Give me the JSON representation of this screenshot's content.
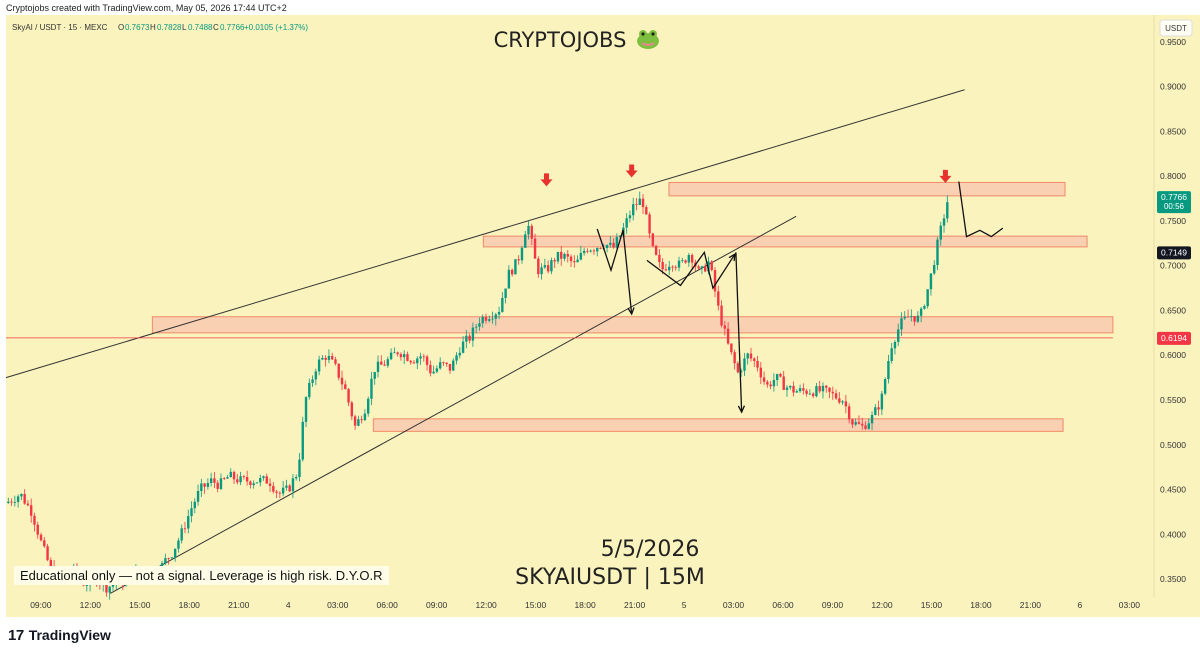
{
  "credit": "Cryptojobs created with TradingView.com, May 05, 2026 17:44 UTC+2",
  "legend": {
    "symbol": "SkyAI / USDT · 15 · MEXC",
    "o_label": "O",
    "o": "0.7673",
    "h_label": "H",
    "h": "0.7828",
    "l_label": "L",
    "l": "0.7488",
    "c_label": "C",
    "c": "0.7766",
    "change": "+0.0105 (+1.37%)"
  },
  "watermark": {
    "text": "CRYPTOJOBS",
    "icon": "frog-icon"
  },
  "annotation": {
    "date": "5/5/2026",
    "pair": "SKYAIUSDT | 15M"
  },
  "disclaimer": "Educational only — not a signal. Leverage is high risk. D.Y.O.R",
  "currency_badge": "USDT",
  "footer": {
    "logo": "17",
    "text": "TradingView"
  },
  "price_tags": {
    "current": {
      "price": "0.7766",
      "countdown": "00:56",
      "color": "#089981"
    },
    "level1": {
      "price": "0.7149",
      "color": "#131722"
    },
    "level2": {
      "price": "0.6194",
      "color": "#f23645"
    }
  },
  "colors": {
    "background": "#fbf3bd",
    "up": "#089981",
    "down": "#f23645",
    "zone_fill": "#f8c9b0",
    "zone_stroke": "#f08a68"
  },
  "chart_data": {
    "type": "candlestick",
    "y_axis": {
      "min": 0.33,
      "max": 0.98,
      "ticks": [
        "0.9500",
        "0.9000",
        "0.8500",
        "0.8000",
        "0.7500",
        "0.7000",
        "0.6500",
        "0.6000",
        "0.5500",
        "0.5000",
        "0.4500",
        "0.4000",
        "0.3500"
      ]
    },
    "x_axis": {
      "ticks": [
        "09:00",
        "12:00",
        "15:00",
        "18:00",
        "21:00",
        "4",
        "03:00",
        "06:00",
        "09:00",
        "12:00",
        "15:00",
        "18:00",
        "21:00",
        "5",
        "03:00",
        "06:00",
        "09:00",
        "12:00",
        "15:00",
        "18:00",
        "21:00",
        "6",
        "03:00"
      ]
    },
    "zones": [
      {
        "x_from": 0.5775,
        "x_to": 0.9225,
        "y_low": 0.778,
        "y_high": 0.793
      },
      {
        "x_from": 0.4158,
        "x_to": 0.9417,
        "y_low": 0.721,
        "y_high": 0.733
      },
      {
        "x_from": 0.1275,
        "x_to": 0.9642,
        "y_low": 0.625,
        "y_high": 0.643
      },
      {
        "x_from": 0.32,
        "x_to": 0.9208,
        "y_low": 0.515,
        "y_high": 0.529
      }
    ],
    "trendlines": [
      {
        "x1": 0.0,
        "y1": 0.575,
        "x2": 0.835,
        "y2": 0.8965
      },
      {
        "x1": 0.0908,
        "y1": 0.334,
        "x2": 0.6883,
        "y2": 0.7552
      },
      {
        "x1": 0.0,
        "y1": 0.6194,
        "x2": 0.9642,
        "y2": 0.6194
      }
    ],
    "projections": [
      [
        [
          0.515,
          0.741
        ],
        [
          0.527,
          0.695
        ],
        [
          0.5375,
          0.74
        ],
        [
          0.545,
          0.646
        ]
      ],
      [
        [
          0.5583,
          0.706
        ],
        [
          0.5875,
          0.678
        ],
        [
          0.6083,
          0.7149
        ],
        [
          0.6158,
          0.675
        ],
        [
          0.635,
          0.713
        ]
      ],
      [
        [
          0.6358,
          0.7149
        ],
        [
          0.6408,
          0.5365
        ]
      ],
      [
        [
          0.83,
          0.794
        ],
        [
          0.8367,
          0.7325
        ],
        [
          0.8483,
          0.7395
        ],
        [
          0.8583,
          0.7325
        ],
        [
          0.8683,
          0.742
        ]
      ]
    ],
    "arrows": [
      {
        "x": 0.4708,
        "y": 0.793
      },
      {
        "x": 0.545,
        "y": 0.803
      },
      {
        "x": 0.8183,
        "y": 0.797
      }
    ],
    "series": [
      {
        "name": "candles",
        "path": [
          [
            0.0,
            0.435
          ],
          [
            0.0125,
            0.445
          ],
          [
            0.0225,
            0.425
          ],
          [
            0.0308,
            0.39
          ],
          [
            0.0392,
            0.36
          ],
          [
            0.05,
            0.35
          ],
          [
            0.0583,
            0.36
          ],
          [
            0.0683,
            0.345
          ],
          [
            0.0792,
            0.35
          ],
          [
            0.0883,
            0.34
          ],
          [
            0.0975,
            0.35
          ],
          [
            0.1058,
            0.345
          ],
          [
            0.1117,
            0.355
          ],
          [
            0.1208,
            0.36
          ],
          [
            0.1292,
            0.35
          ],
          [
            0.1383,
            0.37
          ],
          [
            0.145,
            0.38
          ],
          [
            0.1525,
            0.4
          ],
          [
            0.1617,
            0.43
          ],
          [
            0.1692,
            0.45
          ],
          [
            0.1792,
            0.46
          ],
          [
            0.1858,
            0.455
          ],
          [
            0.1942,
            0.465
          ],
          [
            0.2042,
            0.46
          ],
          [
            0.2125,
            0.46
          ],
          [
            0.2208,
            0.46
          ],
          [
            0.2292,
            0.46
          ],
          [
            0.2375,
            0.445
          ],
          [
            0.2458,
            0.45
          ],
          [
            0.2542,
            0.47
          ],
          [
            0.2608,
            0.55
          ],
          [
            0.2708,
            0.59
          ],
          [
            0.2792,
            0.6
          ],
          [
            0.2875,
            0.585
          ],
          [
            0.2958,
            0.56
          ],
          [
            0.3042,
            0.52
          ],
          [
            0.3125,
            0.54
          ],
          [
            0.3208,
            0.585
          ],
          [
            0.3292,
            0.59
          ],
          [
            0.3417,
            0.605
          ],
          [
            0.3542,
            0.595
          ],
          [
            0.3625,
            0.6
          ],
          [
            0.3708,
            0.58
          ],
          [
            0.3792,
            0.59
          ],
          [
            0.3875,
            0.585
          ],
          [
            0.3958,
            0.61
          ],
          [
            0.4042,
            0.62
          ],
          [
            0.4125,
            0.64
          ],
          [
            0.4208,
            0.645
          ],
          [
            0.4292,
            0.65
          ],
          [
            0.4375,
            0.69
          ],
          [
            0.4458,
            0.705
          ],
          [
            0.4542,
            0.75
          ],
          [
            0.4625,
            0.695
          ],
          [
            0.4708,
            0.695
          ],
          [
            0.4792,
            0.71
          ],
          [
            0.4875,
            0.71
          ],
          [
            0.4958,
            0.7
          ],
          [
            0.505,
            0.72
          ],
          [
            0.5125,
            0.72
          ],
          [
            0.52,
            0.725
          ],
          [
            0.5292,
            0.72
          ],
          [
            0.5375,
            0.74
          ],
          [
            0.5458,
            0.765
          ],
          [
            0.5542,
            0.775
          ],
          [
            0.5625,
            0.72
          ],
          [
            0.5708,
            0.695
          ],
          [
            0.5792,
            0.705
          ],
          [
            0.5875,
            0.7
          ],
          [
            0.5958,
            0.715
          ],
          [
            0.6042,
            0.69
          ],
          [
            0.6125,
            0.705
          ],
          [
            0.6208,
            0.65
          ],
          [
            0.6292,
            0.61
          ],
          [
            0.6375,
            0.58
          ],
          [
            0.6458,
            0.6
          ],
          [
            0.6542,
            0.59
          ],
          [
            0.6625,
            0.565
          ],
          [
            0.6708,
            0.575
          ],
          [
            0.6792,
            0.565
          ],
          [
            0.6875,
            0.56
          ],
          [
            0.6958,
            0.56
          ],
          [
            0.7042,
            0.56
          ],
          [
            0.7125,
            0.56
          ],
          [
            0.7208,
            0.555
          ],
          [
            0.7292,
            0.55
          ],
          [
            0.7375,
            0.525
          ],
          [
            0.7458,
            0.52
          ],
          [
            0.7542,
            0.53
          ],
          [
            0.7625,
            0.55
          ],
          [
            0.7708,
            0.61
          ],
          [
            0.7792,
            0.635
          ],
          [
            0.7875,
            0.645
          ],
          [
            0.7958,
            0.64
          ],
          [
            0.8042,
            0.68
          ],
          [
            0.8125,
            0.73
          ],
          [
            0.8208,
            0.7766
          ]
        ]
      }
    ]
  }
}
